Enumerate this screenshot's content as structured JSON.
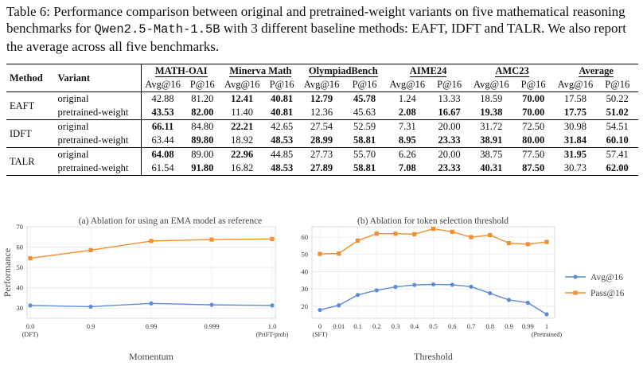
{
  "caption": {
    "part1": "Table 6: Performance comparison between original and pretrained-weight variants on five mathematical reasoning benchmarks for ",
    "model": "Qwen2.5-Math-1.5B",
    "part2": " with 3 different baseline methods: EAFT, IDFT and TALR. We also report the average across all five benchmarks."
  },
  "table": {
    "headers": {
      "method": "Method",
      "variant": "Variant",
      "benchmarks": [
        "MATH-OAI",
        "Minerva Math",
        "OlympiadBench",
        "AIME24",
        "AMC23",
        "Average"
      ],
      "sub1": "Avg@16",
      "sub2": "P@16"
    },
    "groups": [
      {
        "method": "EAFT",
        "rows": [
          {
            "variant": "original",
            "values": [
              "42.88",
              "81.20",
              "12.41",
              "40.81",
              "12.79",
              "45.78",
              "1.24",
              "13.33",
              "18.59",
              "70.00",
              "17.58",
              "50.22"
            ],
            "bold": [
              false,
              false,
              true,
              true,
              true,
              true,
              false,
              false,
              false,
              true,
              false,
              false
            ]
          },
          {
            "variant": "pretrained-weight",
            "values": [
              "43.53",
              "82.00",
              "11.40",
              "40.81",
              "12.36",
              "45.63",
              "2.08",
              "16.67",
              "19.38",
              "70.00",
              "17.75",
              "51.02"
            ],
            "bold": [
              true,
              true,
              false,
              true,
              false,
              false,
              true,
              true,
              true,
              true,
              true,
              true
            ]
          }
        ]
      },
      {
        "method": "IDFT",
        "rows": [
          {
            "variant": "original",
            "values": [
              "66.11",
              "84.80",
              "22.21",
              "42.65",
              "27.54",
              "52.59",
              "7.31",
              "20.00",
              "31.72",
              "72.50",
              "30.98",
              "54.51"
            ],
            "bold": [
              true,
              false,
              true,
              false,
              false,
              false,
              false,
              false,
              false,
              false,
              false,
              false
            ]
          },
          {
            "variant": "pretrained-weight",
            "values": [
              "63.44",
              "89.80",
              "18.92",
              "48.53",
              "28.99",
              "58.81",
              "8.95",
              "23.33",
              "38.91",
              "80.00",
              "31.84",
              "60.10"
            ],
            "bold": [
              false,
              true,
              false,
              true,
              true,
              true,
              true,
              true,
              true,
              true,
              true,
              true
            ]
          }
        ]
      },
      {
        "method": "TALR",
        "rows": [
          {
            "variant": "original",
            "values": [
              "64.08",
              "89.00",
              "22.96",
              "44.85",
              "27.73",
              "55.70",
              "6.26",
              "20.00",
              "38.75",
              "77.50",
              "31.95",
              "57.41"
            ],
            "bold": [
              true,
              false,
              true,
              false,
              false,
              false,
              false,
              false,
              false,
              false,
              true,
              false
            ]
          },
          {
            "variant": "pretrained-weight",
            "values": [
              "61.54",
              "91.80",
              "16.82",
              "48.53",
              "27.89",
              "58.81",
              "7.08",
              "23.33",
              "40.31",
              "87.50",
              "30.73",
              "62.00"
            ],
            "bold": [
              false,
              true,
              false,
              true,
              true,
              true,
              true,
              true,
              true,
              true,
              false,
              true
            ]
          }
        ]
      }
    ]
  },
  "chart_data": [
    {
      "type": "line",
      "title": "(a) Ablation for using an EMA model as reference",
      "xlabel": "Momentum",
      "ylabel": "Performance",
      "categories": [
        "0.0",
        "0.9",
        "0.99",
        "0.999",
        "1.0"
      ],
      "category_sublabels": [
        "(DFT)",
        "",
        "",
        "",
        "(PriFT-prob)"
      ],
      "ylim": [
        25,
        70
      ],
      "yticks": [
        30,
        40,
        50,
        60,
        70
      ],
      "grid": true,
      "series": [
        {
          "values": [
            54.5,
            58.5,
            63.0,
            63.7,
            64.0
          ],
          "color": "#f28e2b",
          "marker": "square"
        },
        {
          "values": [
            31.3,
            30.7,
            32.3,
            31.6,
            31.3
          ],
          "color": "#5b8bd9",
          "marker": "circle"
        }
      ]
    },
    {
      "type": "line",
      "title": "(b) Ablation for token selection threshold",
      "xlabel": "Threshold",
      "categories": [
        "0",
        "0.01",
        "0.1",
        "0.2",
        "0.3",
        "0.4",
        "0.5",
        "0.6",
        "0.7",
        "0.8",
        "0.9",
        "0.99",
        "1"
      ],
      "category_sublabels": [
        "(SFT)",
        "",
        "",
        "",
        "",
        "",
        "",
        "",
        "",
        "",
        "",
        "",
        "(Pretrained)"
      ],
      "ylim": [
        13,
        66
      ],
      "yticks": [
        20,
        30,
        40,
        50,
        60
      ],
      "grid": true,
      "legend": "right",
      "series": [
        {
          "name": "Avg@16",
          "values": [
            17.8,
            20.5,
            26.5,
            29.2,
            31.2,
            32.3,
            32.6,
            32.4,
            31.3,
            27.5,
            23.6,
            22.0,
            15.3
          ],
          "color": "#5b8bd9",
          "marker": "circle"
        },
        {
          "name": "Pass@16",
          "values": [
            50.3,
            50.5,
            58.0,
            62.0,
            62.0,
            61.7,
            64.8,
            63.1,
            60.0,
            61.2,
            56.5,
            55.9,
            57.2
          ],
          "color": "#f28e2b",
          "marker": "square"
        }
      ]
    }
  ]
}
